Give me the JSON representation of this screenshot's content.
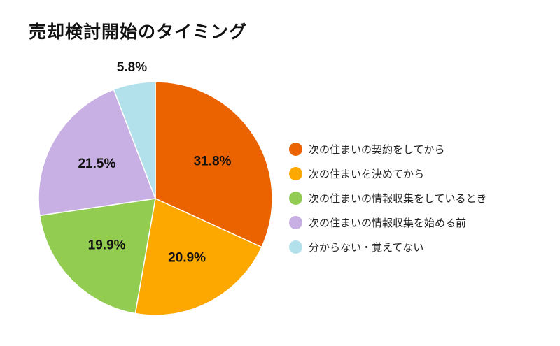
{
  "chart_data": {
    "type": "pie",
    "title": "売却検討開始のタイミング",
    "slices": [
      {
        "label": "次の住まいの契約をしてから",
        "value": 31.8,
        "display": "31.8%",
        "color": "#EB6200"
      },
      {
        "label": "次の住まいを決めてから",
        "value": 20.9,
        "display": "20.9%",
        "color": "#FCA800"
      },
      {
        "label": "次の住まいの情報収集をしているとき",
        "value": 19.9,
        "display": "19.9%",
        "color": "#92CD52"
      },
      {
        "label": "次の住まいの情報収集を始める前",
        "value": 21.5,
        "display": "21.5%",
        "color": "#C8B0E4"
      },
      {
        "label": "分からない・覚えてない",
        "value": 5.8,
        "display": "5.8%",
        "color": "#B3E1EB"
      }
    ],
    "legend_position": "right"
  }
}
